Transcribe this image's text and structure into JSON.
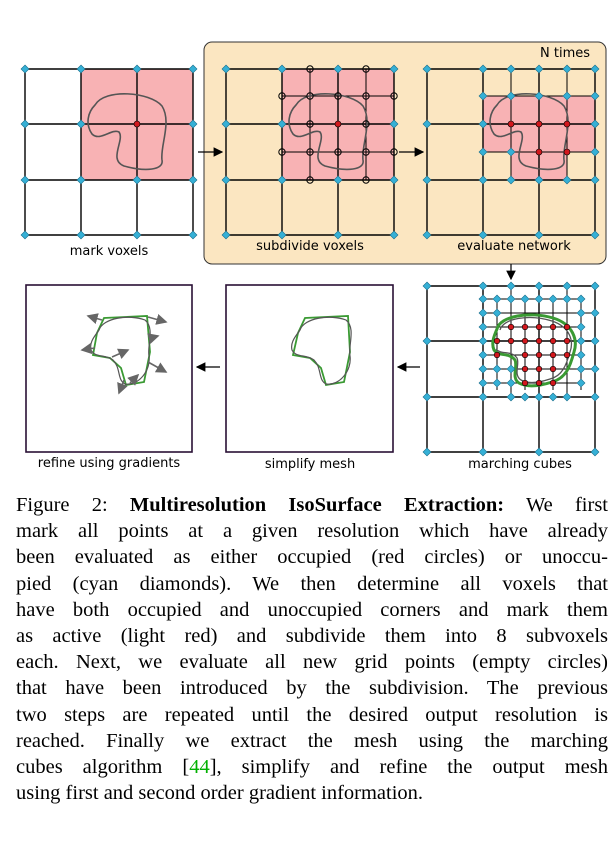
{
  "panels": {
    "mark": "mark voxels",
    "subdivide": "subdivide voxels",
    "evaluate": "evaluate network",
    "marching": "marching cubes",
    "simplify": "simplify mesh",
    "refine": "refine using gradients"
  },
  "loop_label": "N times",
  "colors": {
    "active_voxel": "#f8b2b4",
    "loop_box": "#fbe6c1",
    "grid_line": "#000000",
    "diamond": "#35b0d6",
    "occupied": "#d2181d",
    "mesh": "#3a9a33",
    "shape": "#555555",
    "frame": "#2a1035"
  },
  "caption": {
    "figure_label": "Figure 2:",
    "title": "Multiresolution IsoSurface Extraction:",
    "lines": [
      "We first",
      "mark all points at a given resolution which have already",
      "been evaluated as either occupied (red circles) or unoccu-",
      "pied (cyan diamonds).  We then determine all voxels that",
      "have both occupied and unoccupied corners and mark them",
      "as active (light red) and subdivide them into 8 subvoxels",
      "each. Next, we evaluate all new grid points (empty circles)",
      "that have been introduced by the subdivision. The previous",
      "two steps are repeated until the desired output resolution is",
      "reached.  Finally we extract the mesh using the marching"
    ],
    "line11_before": "cubes algorithm [",
    "citation": "44",
    "line11_after": "], simplify and refine the output mesh",
    "last_line": "using first and second order gradient information."
  }
}
